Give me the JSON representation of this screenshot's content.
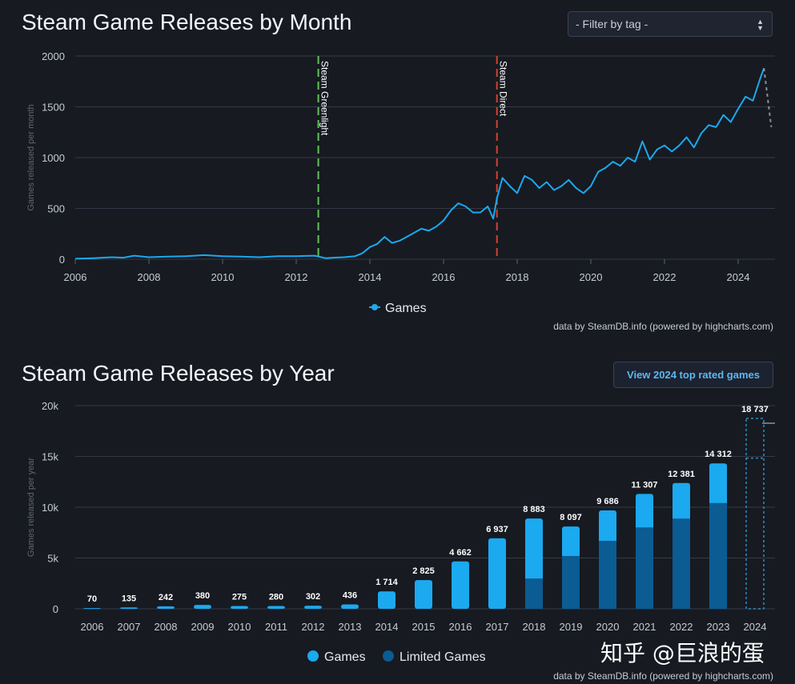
{
  "header": {
    "monthly_title": "Steam Game Releases by Month",
    "yearly_title": "Steam Game Releases by Year",
    "filter_label": "- Filter by tag -",
    "top_rated_button": "View 2024 top rated games"
  },
  "watermark": "知乎 @巨浪的蛋",
  "colors": {
    "games": "#1ba9ef",
    "limited": "#0a5c93",
    "greenlight": "#62c25a",
    "direct": "#d2412e",
    "grid": "#343a46",
    "text": "#c6cbd4"
  },
  "chart_data": [
    {
      "type": "line",
      "title": "Steam Game Releases by Month",
      "ylabel": "Games released per month",
      "xlim": [
        2006,
        2025
      ],
      "ylim": [
        0,
        2000
      ],
      "xticks": [
        2006,
        2008,
        2010,
        2012,
        2014,
        2016,
        2018,
        2020,
        2022,
        2024
      ],
      "yticks": [
        0,
        500,
        1000,
        1500,
        2000
      ],
      "grid": true,
      "legend": {
        "position": "bottom",
        "entries": [
          "Games"
        ]
      },
      "credit": "data by SteamDB.info (powered by highcharts.com)",
      "annotations": [
        {
          "x": 2012.6,
          "label": "Steam Greenlight",
          "color": "#62c25a"
        },
        {
          "x": 2017.45,
          "label": "Steam Direct",
          "color": "#d2412e"
        }
      ],
      "series": [
        {
          "name": "Games",
          "x": [
            2006,
            2006.5,
            2007,
            2007.3,
            2007.6,
            2008,
            2008.5,
            2009,
            2009.5,
            2010,
            2010.5,
            2011,
            2011.5,
            2012,
            2012.5,
            2012.8,
            2013,
            2013.3,
            2013.6,
            2013.8,
            2014,
            2014.2,
            2014.4,
            2014.6,
            2014.8,
            2015,
            2015.2,
            2015.4,
            2015.6,
            2015.8,
            2016,
            2016.2,
            2016.4,
            2016.6,
            2016.8,
            2017,
            2017.2,
            2017.35,
            2017.45,
            2017.6,
            2017.8,
            2018,
            2018.2,
            2018.4,
            2018.6,
            2018.8,
            2019,
            2019.2,
            2019.4,
            2019.6,
            2019.8,
            2020,
            2020.2,
            2020.4,
            2020.6,
            2020.8,
            2021,
            2021.2,
            2021.4,
            2021.6,
            2021.8,
            2022,
            2022.2,
            2022.4,
            2022.6,
            2022.8,
            2023,
            2023.2,
            2023.4,
            2023.6,
            2023.8,
            2024,
            2024.2,
            2024.4,
            2024.6,
            2024.7
          ],
          "y": [
            5,
            10,
            20,
            15,
            35,
            20,
            25,
            30,
            40,
            30,
            25,
            20,
            30,
            30,
            35,
            10,
            15,
            20,
            30,
            60,
            120,
            150,
            220,
            160,
            180,
            220,
            260,
            300,
            280,
            320,
            380,
            480,
            550,
            520,
            460,
            460,
            520,
            400,
            600,
            800,
            720,
            650,
            820,
            780,
            700,
            760,
            680,
            720,
            780,
            700,
            650,
            720,
            860,
            900,
            960,
            920,
            1000,
            960,
            1160,
            980,
            1080,
            1120,
            1060,
            1120,
            1200,
            1100,
            1240,
            1320,
            1300,
            1420,
            1350,
            1480,
            1600,
            1560,
            1780,
            1880
          ]
        },
        {
          "name": "Projection",
          "x": [
            2024.7,
            2024.9
          ],
          "y": [
            1880,
            1300
          ]
        }
      ]
    },
    {
      "type": "bar",
      "title": "Steam Game Releases by Year",
      "ylabel": "Games released per year",
      "categories": [
        "2006",
        "2007",
        "2008",
        "2009",
        "2010",
        "2011",
        "2012",
        "2013",
        "2014",
        "2015",
        "2016",
        "2017",
        "2018",
        "2019",
        "2020",
        "2021",
        "2022",
        "2023",
        "2024"
      ],
      "ylim": [
        0,
        20000
      ],
      "yticks": [
        0,
        5000,
        10000,
        15000,
        20000
      ],
      "ytick_labels": [
        "0",
        "5k",
        "10k",
        "15k",
        "20k"
      ],
      "grid": true,
      "legend": {
        "position": "bottom",
        "entries": [
          "Games",
          "Limited Games"
        ]
      },
      "credit": "data by SteamDB.info (powered by highcharts.com)",
      "data_labels": [
        "70",
        "135",
        "242",
        "380",
        "275",
        "280",
        "302",
        "436",
        "1 714",
        "2 825",
        "4 662",
        "6 937",
        "8 883",
        "8 097",
        "9 686",
        "11 307",
        "12 381",
        "14 312",
        "18 737"
      ],
      "series": [
        {
          "name": "Games",
          "values": [
            70,
            135,
            242,
            380,
            275,
            280,
            302,
            436,
            1714,
            2825,
            4662,
            6937,
            5900,
            2900,
            3000,
            3300,
            3500,
            3900,
            3900
          ]
        },
        {
          "name": "Limited Games",
          "values": [
            0,
            0,
            0,
            0,
            0,
            0,
            0,
            0,
            0,
            0,
            0,
            0,
            2983,
            5197,
            6686,
            8007,
            8881,
            10412,
            14837
          ]
        }
      ],
      "projected_category": "2024"
    }
  ]
}
